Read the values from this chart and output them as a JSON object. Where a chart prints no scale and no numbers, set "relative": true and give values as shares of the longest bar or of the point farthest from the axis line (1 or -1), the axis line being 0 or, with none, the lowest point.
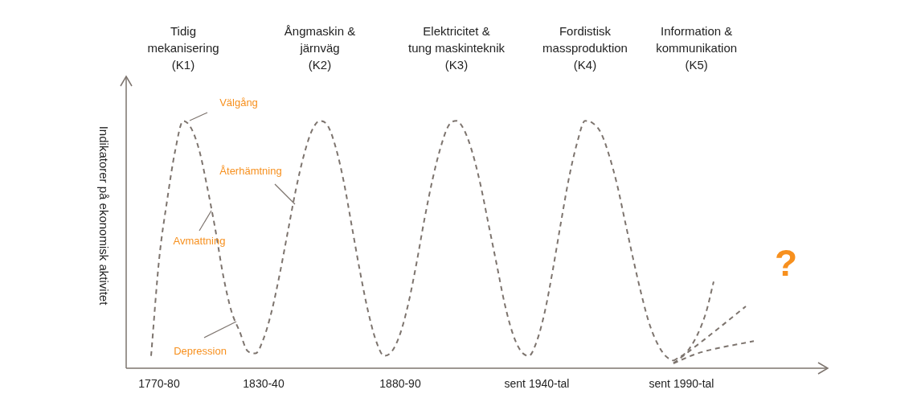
{
  "chart_data": {
    "type": "line",
    "relative": true,
    "line_style": "dashed",
    "marker": "none",
    "legend": false,
    "grid": false,
    "ylabel": "Indikatorer på ekonomisk aktivitet",
    "annotations": [
      "Tidig\nmekanisering\n(K1)",
      "Ångmaskin &\njärnväg\n(K2)",
      "Elektricitet &\ntung maskinteknik\n(K3)",
      "Fordistisk\nmassproduktion\n(K4)",
      "Information &\nkommunikation\n(K5)",
      "Välgång",
      "Återhämtning",
      "Avmattning",
      "Depression",
      "?"
    ],
    "categories": [
      null,
      null,
      null,
      null,
      "1770-80",
      null,
      null,
      null,
      null,
      null,
      null,
      null,
      null,
      null,
      null,
      null,
      null,
      "1830-40",
      null,
      null,
      null,
      null,
      null,
      null,
      null,
      null,
      null,
      null,
      null,
      null,
      null,
      null,
      null,
      null,
      "1880-90",
      null,
      null,
      null,
      null,
      null,
      null,
      null,
      null,
      null,
      null,
      null,
      null,
      null,
      null,
      null,
      null,
      "sent 1940-tal",
      null,
      null,
      null,
      null,
      null,
      null,
      null,
      null,
      null,
      null,
      null,
      null,
      null,
      null,
      null,
      null,
      null,
      "sent 1990-tal",
      null,
      null,
      null,
      null,
      null,
      null,
      null,
      null,
      null,
      null,
      null,
      null,
      null,
      null,
      null,
      null,
      null
    ],
    "series": [
      {
        "color": "#7d746e",
        "values": [
          null,
          null,
          null,
          0.05,
          0.44,
          0.68,
          0.88,
          1.0,
          0.97,
          0.88,
          0.73,
          0.56,
          0.37,
          0.23,
          0.15,
          0.07,
          0.06,
          0.12,
          0.23,
          0.38,
          0.55,
          0.72,
          0.86,
          0.96,
          1.0,
          0.98,
          0.89,
          0.75,
          0.57,
          0.39,
          0.23,
          0.11,
          0.05,
          0.07,
          0.14,
          0.26,
          0.42,
          0.6,
          0.76,
          0.89,
          0.98,
          1.0,
          0.96,
          0.87,
          0.74,
          0.58,
          0.42,
          0.26,
          0.14,
          0.07,
          0.05,
          0.11,
          0.23,
          0.4,
          0.59,
          0.77,
          0.91,
          1.0,
          0.99,
          0.95,
          0.86,
          0.74,
          0.59,
          0.44,
          0.3,
          0.18,
          0.1,
          0.05,
          0.03,
          null,
          null,
          null,
          null,
          null,
          null,
          null,
          null,
          null,
          null,
          null,
          null,
          null,
          null,
          null,
          null,
          null,
          null
        ]
      },
      {
        "color": "#7d746e",
        "values": [
          null,
          null,
          null,
          null,
          null,
          null,
          null,
          null,
          null,
          null,
          null,
          null,
          null,
          null,
          null,
          null,
          null,
          null,
          null,
          null,
          null,
          null,
          null,
          null,
          null,
          null,
          null,
          null,
          null,
          null,
          null,
          null,
          null,
          null,
          null,
          null,
          null,
          null,
          null,
          null,
          null,
          null,
          null,
          null,
          null,
          null,
          null,
          null,
          null,
          null,
          null,
          null,
          null,
          null,
          null,
          null,
          null,
          null,
          null,
          null,
          null,
          null,
          null,
          null,
          null,
          null,
          null,
          null,
          0.03,
          null,
          0.08,
          null,
          0.22,
          0.35,
          null,
          null,
          null,
          null,
          null,
          null,
          null,
          null,
          null,
          null,
          null,
          null,
          null
        ]
      },
      {
        "color": "#7d746e",
        "values": [
          null,
          null,
          null,
          null,
          null,
          null,
          null,
          null,
          null,
          null,
          null,
          null,
          null,
          null,
          null,
          null,
          null,
          null,
          null,
          null,
          null,
          null,
          null,
          null,
          null,
          null,
          null,
          null,
          null,
          null,
          null,
          null,
          null,
          null,
          null,
          null,
          null,
          null,
          null,
          null,
          null,
          null,
          null,
          null,
          null,
          null,
          null,
          null,
          null,
          null,
          null,
          null,
          null,
          null,
          null,
          null,
          null,
          null,
          null,
          null,
          null,
          null,
          null,
          null,
          null,
          null,
          null,
          null,
          0.02,
          null,
          null,
          null,
          0.12,
          null,
          null,
          null,
          null,
          0.25,
          null,
          null,
          null,
          null,
          null,
          null,
          null,
          null,
          null
        ]
      },
      {
        "color": "#7d746e",
        "values": [
          null,
          null,
          null,
          null,
          null,
          null,
          null,
          null,
          null,
          null,
          null,
          null,
          null,
          null,
          null,
          null,
          null,
          null,
          null,
          null,
          null,
          null,
          null,
          null,
          null,
          null,
          null,
          null,
          null,
          null,
          null,
          null,
          null,
          null,
          null,
          null,
          null,
          null,
          null,
          null,
          null,
          null,
          null,
          null,
          null,
          null,
          null,
          null,
          null,
          null,
          null,
          null,
          null,
          null,
          null,
          null,
          null,
          null,
          null,
          null,
          null,
          null,
          null,
          null,
          null,
          null,
          null,
          null,
          0.02,
          null,
          null,
          0.06,
          null,
          null,
          null,
          null,
          null,
          null,
          0.11,
          null,
          null,
          null,
          null,
          null,
          null,
          null,
          null
        ]
      }
    ]
  }
}
